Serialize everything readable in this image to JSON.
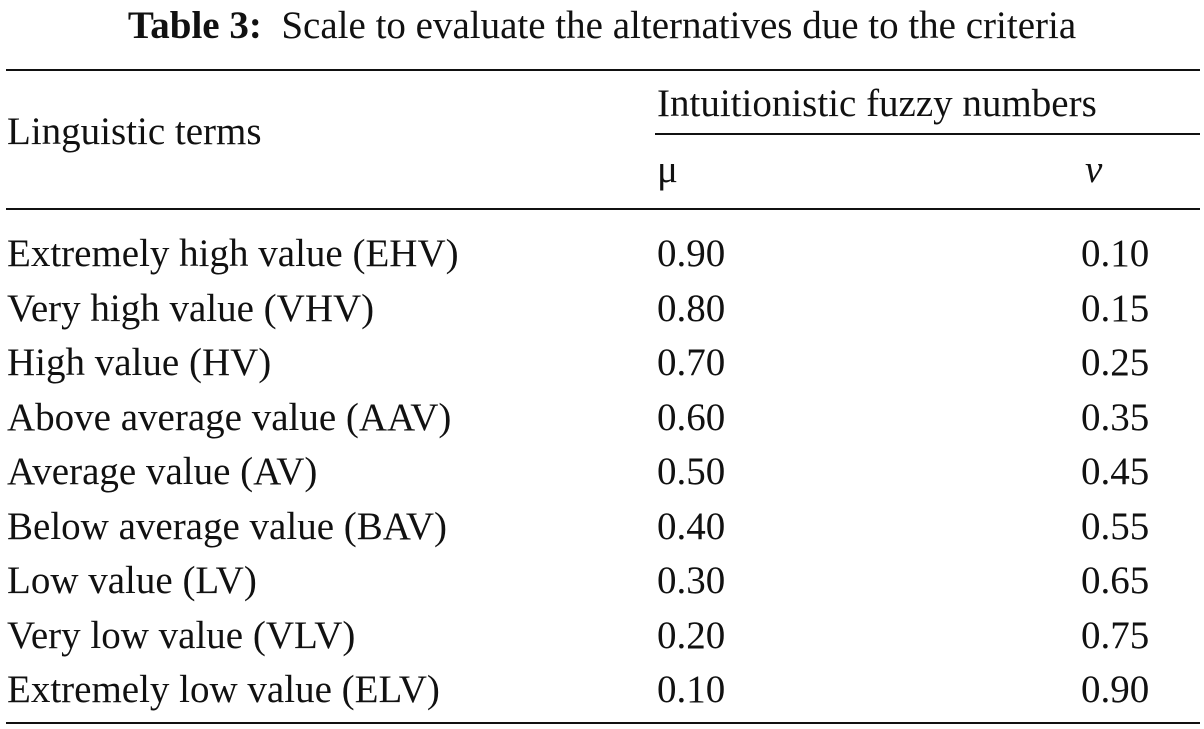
{
  "caption": {
    "label": "Table 3:",
    "text": "Scale to evaluate the alternatives due to the criteria"
  },
  "header": {
    "col1": "Linguistic terms",
    "group": "Intuitionistic fuzzy numbers",
    "mu": "μ",
    "nu": "ν"
  },
  "rows": [
    {
      "term": "Extremely high value (EHV)",
      "mu": "0.90",
      "nu": "0.10"
    },
    {
      "term": "Very high value (VHV)",
      "mu": "0.80",
      "nu": "0.15"
    },
    {
      "term": "High value (HV)",
      "mu": "0.70",
      "nu": "0.25"
    },
    {
      "term": "Above average value (AAV)",
      "mu": "0.60",
      "nu": "0.35"
    },
    {
      "term": "Average value (AV)",
      "mu": "0.50",
      "nu": "0.45"
    },
    {
      "term": "Below average value (BAV)",
      "mu": "0.40",
      "nu": "0.55"
    },
    {
      "term": "Low value (LV)",
      "mu": "0.30",
      "nu": "0.65"
    },
    {
      "term": "Very low value (VLV)",
      "mu": "0.20",
      "nu": "0.75"
    },
    {
      "term": "Extremely low value (ELV)",
      "mu": "0.10",
      "nu": "0.90"
    }
  ]
}
